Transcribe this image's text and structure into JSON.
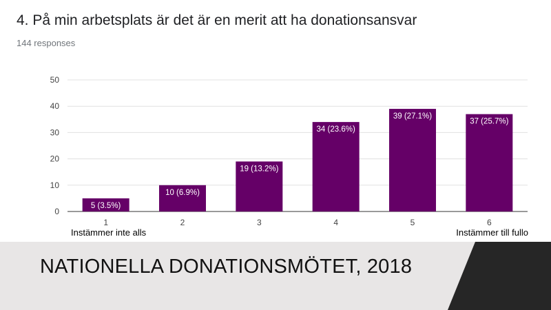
{
  "header": {
    "title": "4. På min arbetsplats är det är en merit att ha donationsansvar",
    "responses": "144 responses"
  },
  "scale_notes": {
    "low": "Instämmer inte alls",
    "high": "Instämmer till fullo"
  },
  "footer": {
    "text": "NATIONELLA DONATIONSMÖTET, 2018"
  },
  "colors": {
    "bar": "#650067",
    "grid": "#e0e0e0",
    "footer_bg": "#e8e6e6",
    "footer_dark": "#262626"
  },
  "chart_data": {
    "type": "bar",
    "title": "4. På min arbetsplats är det är en merit att ha donationsansvar",
    "categories": [
      "1",
      "2",
      "3",
      "4",
      "5",
      "6"
    ],
    "values": [
      5,
      10,
      19,
      34,
      39,
      37
    ],
    "labels": [
      "5 (3.5%)",
      "10 (6.9%)",
      "19 (13.2%)",
      "34 (23.6%)",
      "39 (27.1%)",
      "37 (25.7%)"
    ],
    "yticks": [
      0,
      10,
      20,
      30,
      40,
      50
    ],
    "ylim": [
      0,
      50
    ],
    "grid": true,
    "legend": "none"
  }
}
